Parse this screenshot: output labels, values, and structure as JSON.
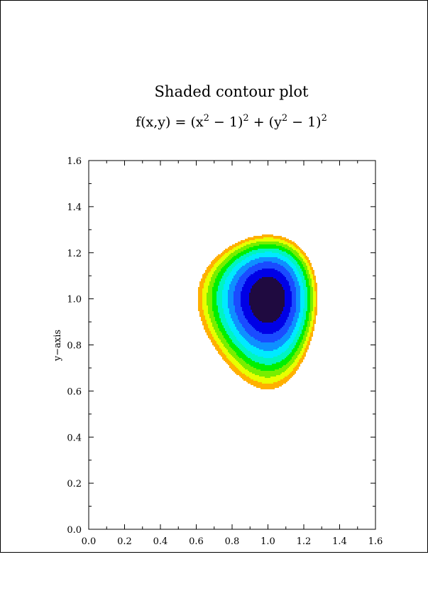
{
  "chart_data": {
    "type": "contour",
    "title": "Shaded contour plot",
    "subtitle_parts": [
      "f(x,y) = (x",
      "2",
      " − 1)",
      "2",
      " + (y",
      "2",
      " − 1)",
      "2"
    ],
    "function": "f(x,y) = (x^2 - 1)^2 + (y^2 - 1)^2",
    "xlabel": "",
    "ylabel": "y−axis",
    "xlim": [
      0.0,
      1.6
    ],
    "ylim": [
      0.0,
      1.6
    ],
    "x_ticks": [
      0.0,
      0.2,
      0.4,
      0.6,
      0.8,
      1.0,
      1.2,
      1.4,
      1.6
    ],
    "y_ticks": [
      0.0,
      0.2,
      0.4,
      0.6,
      0.8,
      1.0,
      1.2,
      1.4,
      1.6
    ],
    "x_tick_labels": [
      "0.0",
      "0.2",
      "0.4",
      "0.6",
      "0.8",
      "1.0",
      "1.2",
      "1.4",
      "1.6"
    ],
    "y_tick_labels": [
      "0.0",
      "0.2",
      "0.4",
      "0.6",
      "0.8",
      "1.0",
      "1.2",
      "1.4",
      "1.6"
    ],
    "minor_ticks_per_interval": 2,
    "grid": false,
    "levels": [
      {
        "min": 0.0,
        "max": 0.04,
        "color": "#1f0a40"
      },
      {
        "min": 0.04,
        "max": 0.08,
        "color": "#0000e6"
      },
      {
        "min": 0.08,
        "max": 0.12,
        "color": "#1a4cff"
      },
      {
        "min": 0.12,
        "max": 0.16,
        "color": "#0e90ff"
      },
      {
        "min": 0.16,
        "max": 0.2,
        "color": "#00eaff"
      },
      {
        "min": 0.2,
        "max": 0.24,
        "color": "#00f5c0"
      },
      {
        "min": 0.24,
        "max": 0.28,
        "color": "#00f000"
      },
      {
        "min": 0.28,
        "max": 0.32,
        "color": "#78ee00"
      },
      {
        "min": 0.32,
        "max": 0.36,
        "color": "#e8ff00"
      },
      {
        "min": 0.36,
        "max": 0.4,
        "color": "#ffb000"
      }
    ]
  }
}
